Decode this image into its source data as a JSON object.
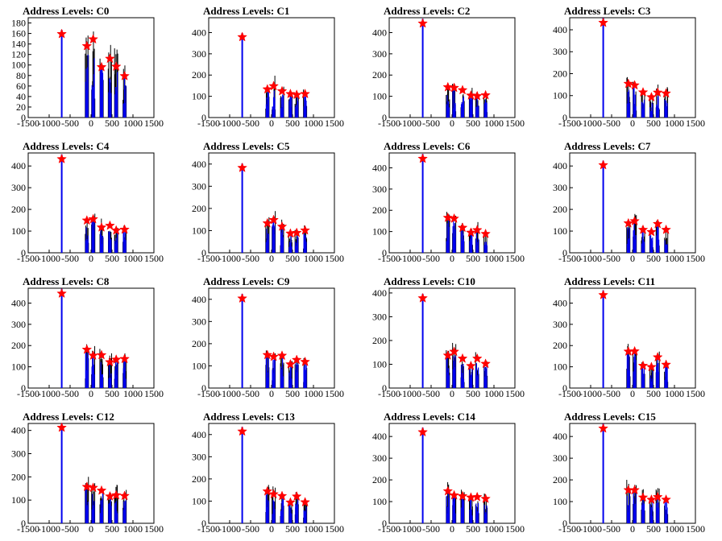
{
  "colors": {
    "histogram": "#0000ee",
    "raw": "#000000",
    "peak_marker": "#ff0000"
  },
  "chart_data": [
    {
      "type": "bar",
      "title": "Address Levels: C0",
      "xlim": [
        -1500,
        1500
      ],
      "ylim": [
        0,
        190
      ],
      "xticks": [
        -1500,
        -1000,
        -500,
        0,
        500,
        1000,
        1500
      ],
      "yticks": [
        0,
        20,
        40,
        60,
        80,
        100,
        120,
        140,
        160,
        180
      ],
      "grid": false,
      "peaks": [
        {
          "x": -700,
          "y": 159
        },
        {
          "x": -100,
          "y": 136
        },
        {
          "x": 50,
          "y": 149
        },
        {
          "x": 250,
          "y": 96
        },
        {
          "x": 450,
          "y": 112
        },
        {
          "x": 600,
          "y": 97
        },
        {
          "x": 800,
          "y": 79
        }
      ]
    },
    {
      "type": "bar",
      "title": "Address Levels: C1",
      "xlim": [
        -1500,
        1500
      ],
      "ylim": [
        0,
        470
      ],
      "xticks": [
        -1500,
        -1000,
        -500,
        0,
        500,
        1000,
        1500
      ],
      "yticks": [
        0,
        100,
        200,
        300,
        400
      ],
      "grid": false,
      "peaks": [
        {
          "x": -700,
          "y": 379
        },
        {
          "x": -100,
          "y": 133
        },
        {
          "x": 50,
          "y": 148
        },
        {
          "x": 250,
          "y": 124
        },
        {
          "x": 450,
          "y": 111
        },
        {
          "x": 600,
          "y": 107
        },
        {
          "x": 800,
          "y": 111
        }
      ]
    },
    {
      "type": "bar",
      "title": "Address Levels: C2",
      "xlim": [
        -1500,
        1500
      ],
      "ylim": [
        0,
        470
      ],
      "xticks": [
        -1500,
        -1000,
        -500,
        0,
        500,
        1000,
        1500
      ],
      "yticks": [
        0,
        100,
        200,
        300,
        400
      ],
      "grid": false,
      "peaks": [
        {
          "x": -700,
          "y": 443
        },
        {
          "x": -100,
          "y": 143
        },
        {
          "x": 50,
          "y": 140
        },
        {
          "x": 250,
          "y": 129
        },
        {
          "x": 450,
          "y": 104
        },
        {
          "x": 600,
          "y": 101
        },
        {
          "x": 800,
          "y": 105
        }
      ]
    },
    {
      "type": "bar",
      "title": "Address Levels: C3",
      "xlim": [
        -1500,
        1500
      ],
      "ylim": [
        0,
        455
      ],
      "xticks": [
        -1500,
        -1000,
        -500,
        0,
        500,
        1000,
        1500
      ],
      "yticks": [
        0,
        100,
        200,
        300,
        400
      ],
      "grid": false,
      "peaks": [
        {
          "x": -700,
          "y": 432
        },
        {
          "x": -100,
          "y": 154
        },
        {
          "x": 50,
          "y": 147
        },
        {
          "x": 250,
          "y": 115
        },
        {
          "x": 450,
          "y": 93
        },
        {
          "x": 600,
          "y": 114
        },
        {
          "x": 800,
          "y": 110
        }
      ]
    },
    {
      "type": "bar",
      "title": "Address Levels: C4",
      "xlim": [
        -1500,
        1500
      ],
      "ylim": [
        0,
        460
      ],
      "xticks": [
        -1500,
        -1000,
        -500,
        0,
        500,
        1000,
        1500
      ],
      "yticks": [
        0,
        100,
        200,
        300,
        400
      ],
      "grid": false,
      "peaks": [
        {
          "x": -700,
          "y": 432
        },
        {
          "x": -100,
          "y": 149
        },
        {
          "x": 50,
          "y": 155
        },
        {
          "x": 250,
          "y": 117
        },
        {
          "x": 450,
          "y": 125
        },
        {
          "x": 600,
          "y": 103
        },
        {
          "x": 800,
          "y": 107
        }
      ]
    },
    {
      "type": "bar",
      "title": "Address Levels: C5",
      "xlim": [
        -1500,
        1500
      ],
      "ylim": [
        0,
        450
      ],
      "xticks": [
        -1500,
        -1000,
        -500,
        0,
        500,
        1000,
        1500
      ],
      "yticks": [
        0,
        100,
        200,
        300,
        400
      ],
      "grid": false,
      "peaks": [
        {
          "x": -700,
          "y": 383
        },
        {
          "x": -100,
          "y": 133
        },
        {
          "x": 50,
          "y": 148
        },
        {
          "x": 250,
          "y": 118
        },
        {
          "x": 450,
          "y": 87
        },
        {
          "x": 600,
          "y": 90
        },
        {
          "x": 800,
          "y": 101
        }
      ]
    },
    {
      "type": "bar",
      "title": "Address Levels: C6",
      "xlim": [
        -1500,
        1500
      ],
      "ylim": [
        0,
        470
      ],
      "xticks": [
        -1500,
        -1000,
        -500,
        0,
        500,
        1000,
        1500
      ],
      "yticks": [
        0,
        100,
        200,
        300,
        400
      ],
      "grid": false,
      "peaks": [
        {
          "x": -700,
          "y": 443
        },
        {
          "x": -100,
          "y": 165
        },
        {
          "x": 50,
          "y": 161
        },
        {
          "x": 250,
          "y": 118
        },
        {
          "x": 450,
          "y": 95
        },
        {
          "x": 600,
          "y": 107
        },
        {
          "x": 800,
          "y": 89
        }
      ]
    },
    {
      "type": "bar",
      "title": "Address Levels: C7",
      "xlim": [
        -1500,
        1500
      ],
      "ylim": [
        0,
        460
      ],
      "xticks": [
        -1500,
        -1000,
        -500,
        0,
        500,
        1000,
        1500
      ],
      "yticks": [
        0,
        100,
        200,
        300,
        400
      ],
      "grid": false,
      "peaks": [
        {
          "x": -700,
          "y": 404
        },
        {
          "x": -100,
          "y": 136
        },
        {
          "x": 50,
          "y": 146
        },
        {
          "x": 250,
          "y": 106
        },
        {
          "x": 450,
          "y": 96
        },
        {
          "x": 600,
          "y": 133
        },
        {
          "x": 800,
          "y": 106
        }
      ]
    },
    {
      "type": "bar",
      "title": "Address Levels: C8",
      "xlim": [
        -1500,
        1500
      ],
      "ylim": [
        0,
        470
      ],
      "xticks": [
        -1500,
        -1000,
        -500,
        0,
        500,
        1000,
        1500
      ],
      "yticks": [
        0,
        100,
        200,
        300,
        400
      ],
      "grid": false,
      "peaks": [
        {
          "x": -700,
          "y": 445
        },
        {
          "x": -100,
          "y": 181
        },
        {
          "x": 50,
          "y": 153
        },
        {
          "x": 250,
          "y": 155
        },
        {
          "x": 450,
          "y": 122
        },
        {
          "x": 600,
          "y": 134
        },
        {
          "x": 800,
          "y": 137
        }
      ]
    },
    {
      "type": "bar",
      "title": "Address Levels: C9",
      "xlim": [
        -1500,
        1500
      ],
      "ylim": [
        0,
        450
      ],
      "xticks": [
        -1500,
        -1000,
        -500,
        0,
        500,
        1000,
        1500
      ],
      "yticks": [
        0,
        100,
        200,
        300,
        400
      ],
      "grid": false,
      "peaks": [
        {
          "x": -700,
          "y": 404
        },
        {
          "x": -100,
          "y": 149
        },
        {
          "x": 50,
          "y": 141
        },
        {
          "x": 250,
          "y": 146
        },
        {
          "x": 450,
          "y": 107
        },
        {
          "x": 600,
          "y": 127
        },
        {
          "x": 800,
          "y": 118
        }
      ]
    },
    {
      "type": "bar",
      "title": "Address Levels: C10",
      "xlim": [
        -1500,
        1500
      ],
      "ylim": [
        0,
        420
      ],
      "xticks": [
        -1500,
        -1000,
        -500,
        0,
        500,
        1000,
        1500
      ],
      "yticks": [
        0,
        100,
        200,
        300,
        400
      ],
      "grid": false,
      "peaks": [
        {
          "x": -700,
          "y": 378
        },
        {
          "x": -100,
          "y": 137
        },
        {
          "x": 50,
          "y": 153
        },
        {
          "x": 250,
          "y": 124
        },
        {
          "x": 450,
          "y": 93
        },
        {
          "x": 600,
          "y": 124
        },
        {
          "x": 800,
          "y": 102
        }
      ]
    },
    {
      "type": "bar",
      "title": "Address Levels: C11",
      "xlim": [
        -1500,
        1500
      ],
      "ylim": [
        0,
        470
      ],
      "xticks": [
        -1500,
        -1000,
        -500,
        0,
        500,
        1000,
        1500
      ],
      "yticks": [
        0,
        100,
        200,
        300,
        400
      ],
      "grid": false,
      "peaks": [
        {
          "x": -700,
          "y": 438
        },
        {
          "x": -100,
          "y": 172
        },
        {
          "x": 50,
          "y": 173
        },
        {
          "x": 250,
          "y": 105
        },
        {
          "x": 450,
          "y": 99
        },
        {
          "x": 600,
          "y": 145
        },
        {
          "x": 800,
          "y": 110
        }
      ]
    },
    {
      "type": "bar",
      "title": "Address Levels: C12",
      "xlim": [
        -1500,
        1500
      ],
      "ylim": [
        0,
        430
      ],
      "xticks": [
        -1500,
        -1000,
        -500,
        0,
        500,
        1000,
        1500
      ],
      "yticks": [
        0,
        100,
        200,
        300,
        400
      ],
      "grid": false,
      "peaks": [
        {
          "x": -700,
          "y": 412
        },
        {
          "x": -100,
          "y": 157
        },
        {
          "x": 50,
          "y": 153
        },
        {
          "x": 250,
          "y": 141
        },
        {
          "x": 450,
          "y": 116
        },
        {
          "x": 600,
          "y": 121
        },
        {
          "x": 800,
          "y": 118
        }
      ]
    },
    {
      "type": "bar",
      "title": "Address Levels: C13",
      "xlim": [
        -1500,
        1500
      ],
      "ylim": [
        0,
        450
      ],
      "xticks": [
        -1500,
        -1000,
        -500,
        0,
        500,
        1000,
        1500
      ],
      "yticks": [
        0,
        100,
        200,
        300,
        400
      ],
      "grid": false,
      "peaks": [
        {
          "x": -700,
          "y": 414
        },
        {
          "x": -100,
          "y": 144
        },
        {
          "x": 50,
          "y": 131
        },
        {
          "x": 250,
          "y": 123
        },
        {
          "x": 450,
          "y": 94
        },
        {
          "x": 600,
          "y": 121
        },
        {
          "x": 800,
          "y": 95
        }
      ]
    },
    {
      "type": "bar",
      "title": "Address Levels: C14",
      "xlim": [
        -1500,
        1500
      ],
      "ylim": [
        0,
        460
      ],
      "xticks": [
        -1500,
        -1000,
        -500,
        0,
        500,
        1000,
        1500
      ],
      "yticks": [
        0,
        100,
        200,
        300,
        400
      ],
      "grid": false,
      "peaks": [
        {
          "x": -700,
          "y": 420
        },
        {
          "x": -100,
          "y": 148
        },
        {
          "x": 50,
          "y": 129
        },
        {
          "x": 250,
          "y": 125
        },
        {
          "x": 450,
          "y": 119
        },
        {
          "x": 600,
          "y": 121
        },
        {
          "x": 800,
          "y": 113
        }
      ]
    },
    {
      "type": "bar",
      "title": "Address Levels: C15",
      "xlim": [
        -1500,
        1500
      ],
      "ylim": [
        0,
        460
      ],
      "xticks": [
        -1500,
        -1000,
        -500,
        0,
        500,
        1000,
        1500
      ],
      "yticks": [
        0,
        100,
        200,
        300,
        400
      ],
      "grid": false,
      "peaks": [
        {
          "x": -700,
          "y": 437
        },
        {
          "x": -100,
          "y": 153
        },
        {
          "x": 50,
          "y": 153
        },
        {
          "x": 250,
          "y": 119
        },
        {
          "x": 450,
          "y": 109
        },
        {
          "x": 600,
          "y": 121
        },
        {
          "x": 800,
          "y": 109
        }
      ]
    }
  ]
}
